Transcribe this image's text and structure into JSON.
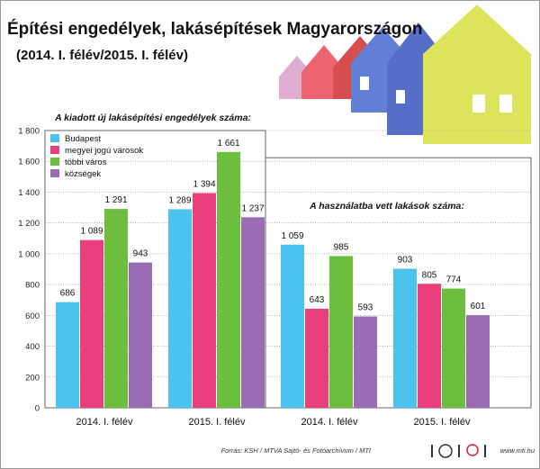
{
  "title": "Építési engedélyek, lakásépítések Magyarországon",
  "subtitle": "(2014. I. félév/2015. I. félév)",
  "source": "Forrás: KSH / MTVA Sajtó- és Fotóarchívum / MTI",
  "website": "www.mti.hu",
  "logo_text": "MTVA",
  "colors": {
    "Budapest": "#4cc3ee",
    "megyei": "#ea3f7c",
    "tobbi": "#6dbd3e",
    "kozsegek": "#9a6cb4"
  },
  "chart_data": {
    "type": "bar",
    "ylim": [
      0,
      1800
    ],
    "yticks": [
      "0",
      "200",
      "400",
      "600",
      "800",
      "1 000",
      "1 200",
      "1 400",
      "1 600",
      "1 800"
    ],
    "legend": [
      "Budapest",
      "megyei jogú városok",
      "többi város",
      "községek"
    ],
    "legend_placement": "top-left",
    "panels": [
      {
        "title": "A kiadott új lakásépítési engedélyek száma:",
        "categories": [
          "2014. I. félév",
          "2015. I. félév"
        ],
        "series": [
          {
            "name": "Budapest",
            "values": [
              686,
              1289
            ],
            "labels": [
              "686",
              "1 289"
            ]
          },
          {
            "name": "megyei jogú városok",
            "values": [
              1089,
              1394
            ],
            "labels": [
              "1 089",
              "1 394"
            ]
          },
          {
            "name": "többi város",
            "values": [
              1291,
              1661
            ],
            "labels": [
              "1 291",
              "1 661"
            ]
          },
          {
            "name": "községek",
            "values": [
              943,
              1237
            ],
            "labels": [
              "943",
              "1 237"
            ]
          }
        ]
      },
      {
        "title": "A használatba vett lakások száma:",
        "categories": [
          "2014. I. félév",
          "2015. I. félév"
        ],
        "series": [
          {
            "name": "Budapest",
            "values": [
              1059,
              903
            ],
            "labels": [
              "1 059",
              "903"
            ]
          },
          {
            "name": "megyei jogú városok",
            "values": [
              643,
              805
            ],
            "labels": [
              "643",
              "805"
            ]
          },
          {
            "name": "többi város",
            "values": [
              985,
              774
            ],
            "labels": [
              "985",
              "774"
            ]
          },
          {
            "name": "községek",
            "values": [
              593,
              601
            ],
            "labels": [
              "593",
              "601"
            ]
          }
        ]
      }
    ]
  }
}
